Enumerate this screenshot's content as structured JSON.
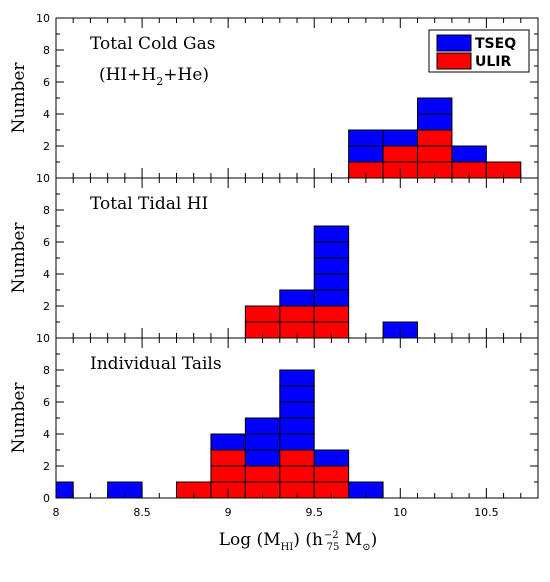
{
  "colors": {
    "tseq": "#0000ff",
    "ulir": "#ff0000",
    "axis": "#000000",
    "cell_edge": "#000000"
  },
  "legend": {
    "tseq": "TSEQ",
    "ulir": "ULIR"
  },
  "xlabel": "Log (M_HI) (h_75^-2 M_⊙)",
  "ylabel": "Number",
  "chart_data": [
    {
      "type": "bar",
      "stacked": true,
      "title": "Total Cold Gas",
      "subtitle": "(HI+H2+He)",
      "legend_visible": true,
      "legend_position": "top-right",
      "xlim": [
        8,
        10.8
      ],
      "ylim": [
        0,
        10
      ],
      "xticks": [
        8,
        8.5,
        9,
        9.5,
        10,
        10.5
      ],
      "xtick_labels_visible": false,
      "yticks": [
        2,
        4,
        6,
        8,
        10
      ],
      "bin_width": 0.2,
      "bins": [
        {
          "x0": 9.7,
          "ulir": 1,
          "tseq": 2
        },
        {
          "x0": 9.9,
          "ulir": 2,
          "tseq": 1
        },
        {
          "x0": 10.1,
          "ulir": 3,
          "tseq": 2
        },
        {
          "x0": 10.3,
          "ulir": 1,
          "tseq": 1
        },
        {
          "x0": 10.5,
          "ulir": 1,
          "tseq": 0
        }
      ]
    },
    {
      "type": "bar",
      "stacked": true,
      "title": "Total Tidal HI",
      "legend_visible": false,
      "xlim": [
        8,
        10.8
      ],
      "ylim": [
        0,
        10
      ],
      "xticks": [
        8,
        8.5,
        9,
        9.5,
        10,
        10.5
      ],
      "xtick_labels_visible": false,
      "yticks": [
        2,
        4,
        6,
        8,
        10
      ],
      "bin_width": 0.2,
      "bins": [
        {
          "x0": 9.1,
          "ulir": 2,
          "tseq": 0
        },
        {
          "x0": 9.3,
          "ulir": 2,
          "tseq": 1
        },
        {
          "x0": 9.5,
          "ulir": 2,
          "tseq": 5
        },
        {
          "x0": 9.9,
          "ulir": 0,
          "tseq": 1
        }
      ]
    },
    {
      "type": "bar",
      "stacked": true,
      "title": "Individual Tails",
      "legend_visible": false,
      "xlim": [
        8,
        10.8
      ],
      "ylim": [
        0,
        10
      ],
      "xticks": [
        8,
        8.5,
        9,
        9.5,
        10,
        10.5
      ],
      "xtick_labels_visible": true,
      "yticks": [
        0,
        2,
        4,
        6,
        8,
        10
      ],
      "bin_width": 0.2,
      "bins": [
        {
          "x0": 7.9,
          "ulir": 0,
          "tseq": 1
        },
        {
          "x0": 8.3,
          "ulir": 0,
          "tseq": 1
        },
        {
          "x0": 8.7,
          "ulir": 1,
          "tseq": 0
        },
        {
          "x0": 8.9,
          "ulir": 3,
          "tseq": 1
        },
        {
          "x0": 9.1,
          "ulir": 2,
          "tseq": 3
        },
        {
          "x0": 9.3,
          "ulir": 3,
          "tseq": 5
        },
        {
          "x0": 9.5,
          "ulir": 2,
          "tseq": 1
        },
        {
          "x0": 9.7,
          "ulir": 0,
          "tseq": 1
        }
      ]
    }
  ]
}
